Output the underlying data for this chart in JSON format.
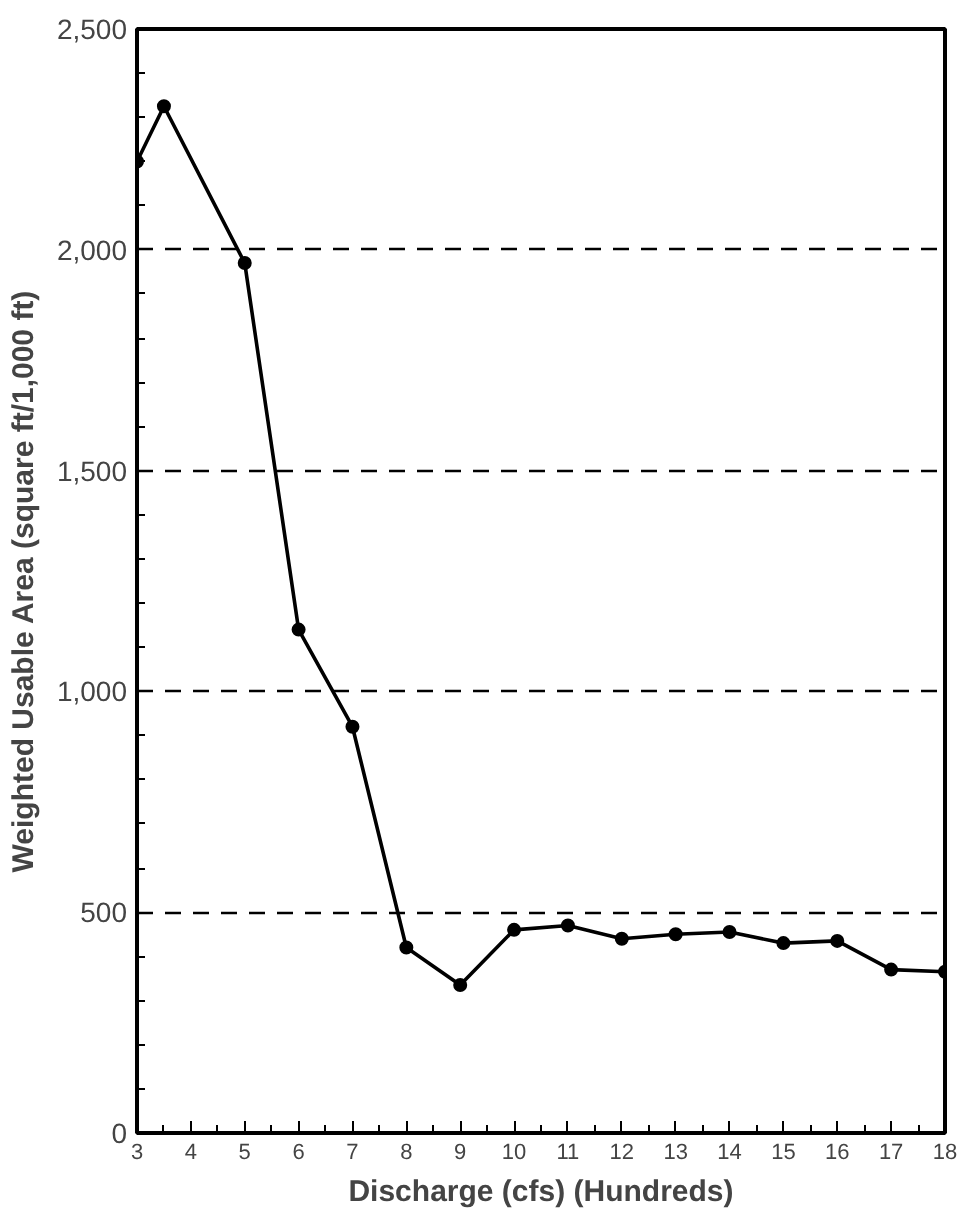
{
  "chart_data": {
    "type": "line",
    "xlabel": "Discharge (cfs) (Hundreds)",
    "ylabel": "Weighted Usable Area (square ft/1,000 ft)",
    "x": [
      3,
      3.5,
      5,
      6,
      7,
      8,
      9,
      10,
      11,
      12,
      13,
      14,
      15,
      16,
      17,
      18
    ],
    "series": [
      {
        "color": "#000000",
        "values": [
          2200,
          2325,
          1970,
          1140,
          920,
          420,
          335,
          460,
          470,
          440,
          450,
          455,
          430,
          435,
          370,
          365
        ]
      }
    ],
    "xlim": [
      3,
      18
    ],
    "xticks": [
      3,
      4,
      5,
      6,
      7,
      8,
      9,
      10,
      11,
      12,
      13,
      14,
      15,
      16,
      17,
      18
    ],
    "ylim": [
      0,
      2500
    ],
    "yticks": [
      {
        "value": 0,
        "label": "0"
      },
      {
        "value": 500,
        "label": "500"
      },
      {
        "value": 1000,
        "label": "1,000"
      },
      {
        "value": 1500,
        "label": "1,500"
      },
      {
        "value": 2000,
        "label": "2,000"
      },
      {
        "value": 2500,
        "label": "2,500"
      }
    ],
    "grid": "y",
    "marker": "circle",
    "line_style": "solid"
  }
}
